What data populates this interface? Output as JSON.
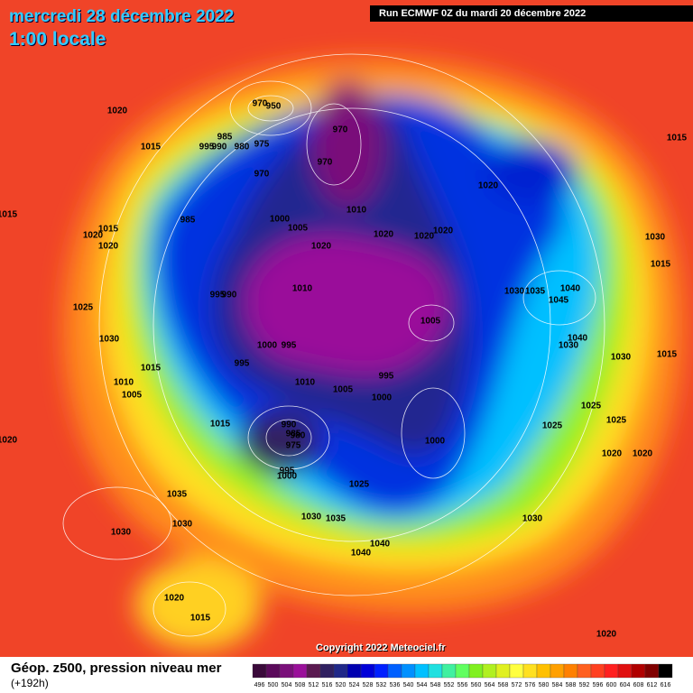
{
  "header": {
    "title": "mercredi 28 décembre 2022",
    "time": "1:00 locale",
    "run": "Run ECMWF 0Z du mardi 20 décembre 2022"
  },
  "copyright": "Copyright 2022 Meteociel.fr",
  "footer": {
    "product": "Géop. z500, pression niveau mer",
    "lead": "(+192h)"
  },
  "colorbar": {
    "labels": [
      496,
      500,
      504,
      508,
      512,
      516,
      520,
      524,
      528,
      532,
      536,
      540,
      544,
      548,
      552,
      556,
      560,
      564,
      568,
      572,
      576,
      580,
      584,
      588,
      592,
      596,
      600,
      604,
      608,
      612,
      616
    ],
    "colors": [
      "#3a0a3a",
      "#5a0a5a",
      "#7a107a",
      "#9a109a",
      "#5a1a50",
      "#302060",
      "#202888",
      "#0000b0",
      "#0000d8",
      "#0020ff",
      "#0060ff",
      "#0090ff",
      "#00c0ff",
      "#20e0e0",
      "#40f0a0",
      "#60ff60",
      "#80f020",
      "#b0f020",
      "#e0f020",
      "#ffff40",
      "#ffe020",
      "#ffc000",
      "#ffa000",
      "#ff8000",
      "#ff6020",
      "#ff4020",
      "#ff2020",
      "#e01010",
      "#b00000",
      "#800000",
      "#000000"
    ]
  },
  "isobar_labels": [
    970,
    950,
    970,
    985,
    995,
    990,
    980,
    975,
    970,
    970,
    1015,
    1020,
    1015,
    1020,
    985,
    1000,
    1005,
    1010,
    1020,
    1020,
    1020,
    1020,
    1015,
    1015,
    1020,
    1020,
    1030,
    1015,
    1025,
    995,
    990,
    1010,
    1030,
    1035,
    1040,
    1045,
    1005,
    1030,
    1000,
    995,
    1040,
    1030,
    1030,
    1015,
    1015,
    995,
    995,
    1010,
    1005,
    1010,
    1005,
    1000,
    1025,
    1025,
    1015,
    990,
    985,
    980,
    975,
    1020,
    1000,
    1025,
    1020,
    1020,
    995,
    1000,
    1025,
    1035,
    1030,
    1030,
    1030,
    1035,
    1030,
    1040,
    1040,
    1020,
    1015,
    1020
  ]
}
